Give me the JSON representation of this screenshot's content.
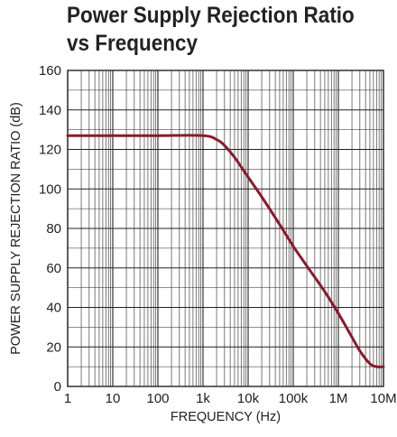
{
  "chart_data": {
    "type": "line",
    "title_lines": [
      "Power Supply Rejection Ratio",
      "vs Frequency"
    ],
    "xlabel": "FREQUENCY (Hz)",
    "ylabel": "POWER SUPPLY REJECTION RATIO (dB)",
    "x_scale": "log",
    "xlim": [
      1,
      10000000
    ],
    "ylim": [
      0,
      160
    ],
    "x_ticks": [
      1,
      10,
      100,
      1000,
      10000,
      100000,
      1000000,
      10000000
    ],
    "x_tick_labels": [
      "1",
      "10",
      "100",
      "1k",
      "10k",
      "100k",
      "1M",
      "10M"
    ],
    "y_ticks": [
      0,
      20,
      40,
      60,
      80,
      100,
      120,
      140,
      160
    ],
    "y_tick_labels": [
      "0",
      "20",
      "40",
      "60",
      "80",
      "100",
      "120",
      "140",
      "160"
    ],
    "grid": true,
    "line_color": "#8b1a2e",
    "series": [
      {
        "x": [
          1,
          10,
          100,
          1000,
          2000,
          3000,
          5000,
          10000,
          20000,
          50000,
          100000,
          200000,
          500000,
          1000000,
          2000000,
          3000000,
          5000000,
          7000000,
          10000000
        ],
        "y": [
          127,
          127,
          127,
          127,
          125,
          122,
          116,
          106,
          96,
          82,
          71,
          61,
          48,
          37,
          25,
          18,
          11.5,
          10,
          10
        ]
      }
    ]
  }
}
